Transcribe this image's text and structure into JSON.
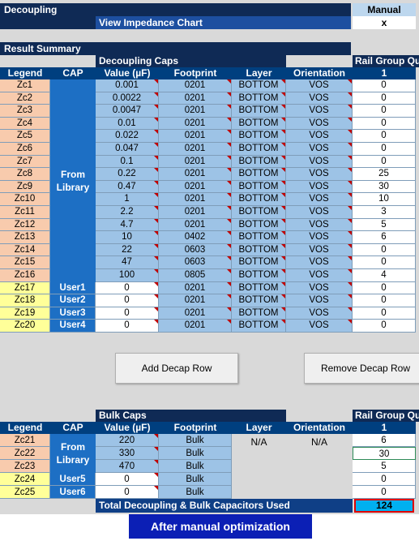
{
  "header": {
    "title": "Decoupling",
    "mode_label": "Manual",
    "view_chart_label": "View Impedance Chart",
    "view_chart_value": "x"
  },
  "result_summary": {
    "title": "Result Summary",
    "section_label": "Decoupling Caps",
    "rail_group_label": "Rail Group Qu",
    "rail_group_number": "1",
    "columns": [
      "Legend",
      "CAP",
      "Value (µF)",
      "Footprint",
      "Layer",
      "Orientation"
    ],
    "library_label": "From Library",
    "rows": [
      {
        "legend": "Zc1",
        "value": "0.001",
        "footprint": "0201",
        "layer": "BOTTOM",
        "orientation": "VOS",
        "qty": "0"
      },
      {
        "legend": "Zc2",
        "value": "0.0022",
        "footprint": "0201",
        "layer": "BOTTOM",
        "orientation": "VOS",
        "qty": "0"
      },
      {
        "legend": "Zc3",
        "value": "0.0047",
        "footprint": "0201",
        "layer": "BOTTOM",
        "orientation": "VOS",
        "qty": "0"
      },
      {
        "legend": "Zc4",
        "value": "0.01",
        "footprint": "0201",
        "layer": "BOTTOM",
        "orientation": "VOS",
        "qty": "0"
      },
      {
        "legend": "Zc5",
        "value": "0.022",
        "footprint": "0201",
        "layer": "BOTTOM",
        "orientation": "VOS",
        "qty": "0"
      },
      {
        "legend": "Zc6",
        "value": "0.047",
        "footprint": "0201",
        "layer": "BOTTOM",
        "orientation": "VOS",
        "qty": "0"
      },
      {
        "legend": "Zc7",
        "value": "0.1",
        "footprint": "0201",
        "layer": "BOTTOM",
        "orientation": "VOS",
        "qty": "0"
      },
      {
        "legend": "Zc8",
        "value": "0.22",
        "footprint": "0201",
        "layer": "BOTTOM",
        "orientation": "VOS",
        "qty": "25"
      },
      {
        "legend": "Zc9",
        "value": "0.47",
        "footprint": "0201",
        "layer": "BOTTOM",
        "orientation": "VOS",
        "qty": "30"
      },
      {
        "legend": "Zc10",
        "value": "1",
        "footprint": "0201",
        "layer": "BOTTOM",
        "orientation": "VOS",
        "qty": "10"
      },
      {
        "legend": "Zc11",
        "value": "2.2",
        "footprint": "0201",
        "layer": "BOTTOM",
        "orientation": "VOS",
        "qty": "3"
      },
      {
        "legend": "Zc12",
        "value": "4.7",
        "footprint": "0201",
        "layer": "BOTTOM",
        "orientation": "VOS",
        "qty": "5"
      },
      {
        "legend": "Zc13",
        "value": "10",
        "footprint": "0402",
        "layer": "BOTTOM",
        "orientation": "VOS",
        "qty": "6"
      },
      {
        "legend": "Zc14",
        "value": "22",
        "footprint": "0603",
        "layer": "BOTTOM",
        "orientation": "VOS",
        "qty": "0"
      },
      {
        "legend": "Zc15",
        "value": "47",
        "footprint": "0603",
        "layer": "BOTTOM",
        "orientation": "VOS",
        "qty": "0"
      },
      {
        "legend": "Zc16",
        "value": "100",
        "footprint": "0805",
        "layer": "BOTTOM",
        "orientation": "VOS",
        "qty": "4"
      }
    ],
    "user_rows": [
      {
        "legend": "Zc17",
        "cap": "User1",
        "value": "0",
        "footprint": "0201",
        "layer": "BOTTOM",
        "orientation": "VOS",
        "qty": "0"
      },
      {
        "legend": "Zc18",
        "cap": "User2",
        "value": "0",
        "footprint": "0201",
        "layer": "BOTTOM",
        "orientation": "VOS",
        "qty": "0"
      },
      {
        "legend": "Zc19",
        "cap": "User3",
        "value": "0",
        "footprint": "0201",
        "layer": "BOTTOM",
        "orientation": "VOS",
        "qty": "0"
      },
      {
        "legend": "Zc20",
        "cap": "User4",
        "value": "0",
        "footprint": "0201",
        "layer": "BOTTOM",
        "orientation": "VOS",
        "qty": "0"
      }
    ]
  },
  "buttons": {
    "add_row": "Add Decap Row",
    "remove_row": "Remove Decap Row"
  },
  "bulk": {
    "section_label": "Bulk Caps",
    "rail_group_label": "Rail Group Qu",
    "rail_group_number": "1",
    "columns": [
      "Legend",
      "CAP",
      "Value (µF)",
      "Footprint",
      "Layer",
      "Orientation"
    ],
    "library_label": "From Library",
    "layer_na": "N/A",
    "orientation_na": "N/A",
    "rows": [
      {
        "legend": "Zc21",
        "value": "220",
        "footprint": "Bulk",
        "qty": "6"
      },
      {
        "legend": "Zc22",
        "value": "330",
        "footprint": "Bulk",
        "qty": "30"
      },
      {
        "legend": "Zc23",
        "value": "470",
        "footprint": "Bulk",
        "qty": "5"
      }
    ],
    "user_rows": [
      {
        "legend": "Zc24",
        "cap": "User5",
        "value": "0",
        "footprint": "Bulk",
        "qty": "0"
      },
      {
        "legend": "Zc25",
        "cap": "User6",
        "value": "0",
        "footprint": "Bulk",
        "qty": "0"
      }
    ],
    "total_label": "Total Decoupling & Bulk Capacitors Used",
    "total_value": "124"
  },
  "caption": "After manual optimization"
}
